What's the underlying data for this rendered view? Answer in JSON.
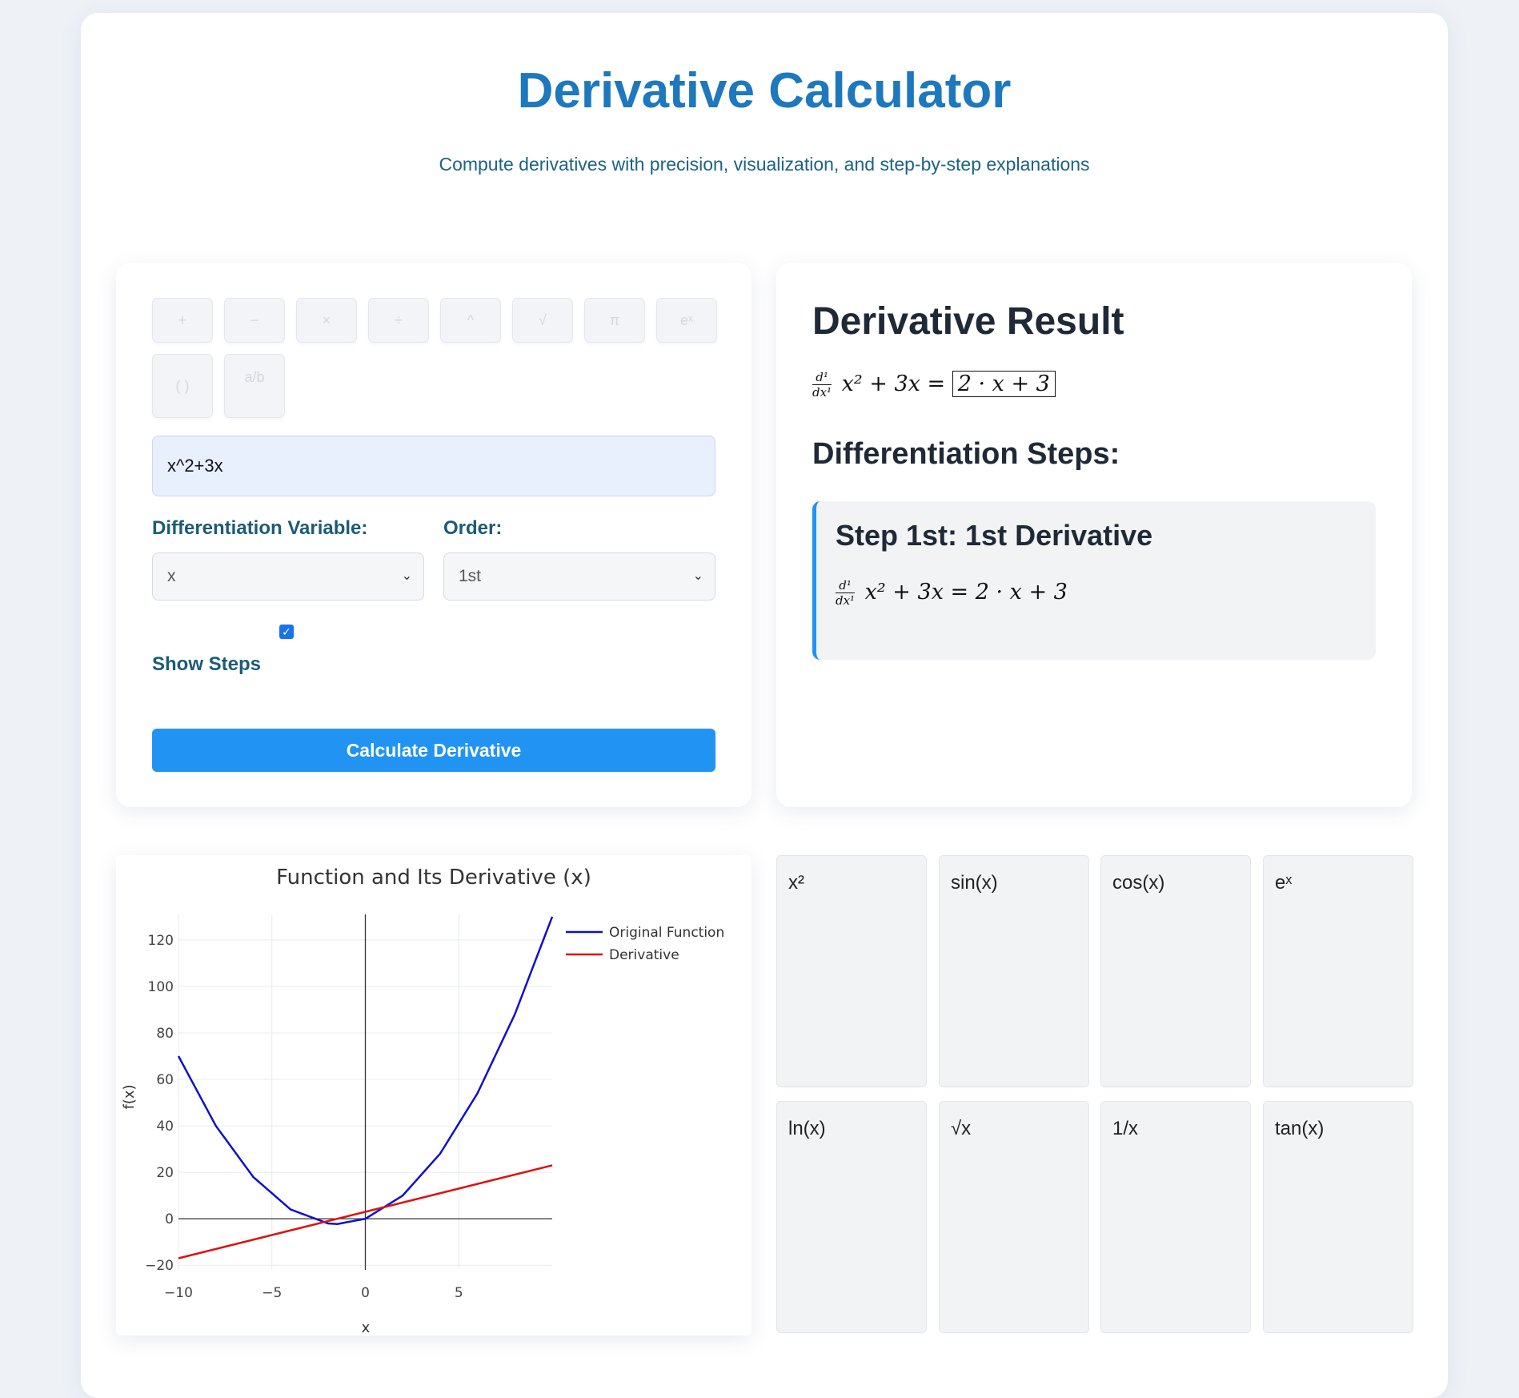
{
  "header": {
    "title": "Derivative Calculator",
    "subtitle": "Compute derivatives with precision, visualization, and step-by-step explanations"
  },
  "input_panel": {
    "toolbar": [
      "+",
      "−",
      "×",
      "÷",
      "^",
      "√",
      "π",
      "eˣ",
      "( )",
      "a/b"
    ],
    "expression_value": "x^2+3x",
    "variable_label": "Differentiation Variable:",
    "variable_value": "x",
    "order_label": "Order:",
    "order_value": "1st",
    "show_steps_checked": true,
    "show_steps_label": "Show Steps",
    "calculate_label": "Calculate Derivative"
  },
  "result_panel": {
    "heading": "Derivative Result",
    "diff_num": "d¹",
    "diff_den": "dx¹",
    "expression": "x² + 3x",
    "result": "2 · x + 3",
    "steps_heading": "Differentiation Steps:",
    "step_title": "Step 1st: 1st Derivative",
    "step_expression": "x² + 3x = 2 · x + 3"
  },
  "chart_data": {
    "type": "line",
    "title": "Function and Its Derivative (x)",
    "xlabel": "x",
    "ylabel": "f(x)",
    "xlim": [
      -10,
      10
    ],
    "ylim": [
      -22,
      131
    ],
    "x_ticks": [
      -10,
      -5,
      0,
      5
    ],
    "y_ticks": [
      -20,
      0,
      20,
      40,
      60,
      80,
      100,
      120
    ],
    "grid": true,
    "legend": "top-right",
    "series": [
      {
        "name": "Original Function",
        "color": "#1010cc",
        "formula": "x^2+3x",
        "x": [
          -10,
          -8,
          -6,
          -4,
          -2,
          -1.5,
          0,
          2,
          4,
          6,
          8,
          10
        ],
        "y": [
          70,
          40,
          18,
          4,
          -2,
          -2.25,
          0,
          10,
          28,
          54,
          88,
          130
        ]
      },
      {
        "name": "Derivative",
        "color": "#dd1111",
        "formula": "2x+3",
        "x": [
          -10,
          10
        ],
        "y": [
          -17,
          23
        ]
      }
    ]
  },
  "function_tiles": [
    "x²",
    "sin(x)",
    "cos(x)",
    "eˣ",
    "ln(x)",
    "√x",
    "1/x",
    "tan(x)"
  ],
  "colors": {
    "accent": "#2194f3",
    "title": "#1d78bd",
    "label": "#1b5b78"
  }
}
